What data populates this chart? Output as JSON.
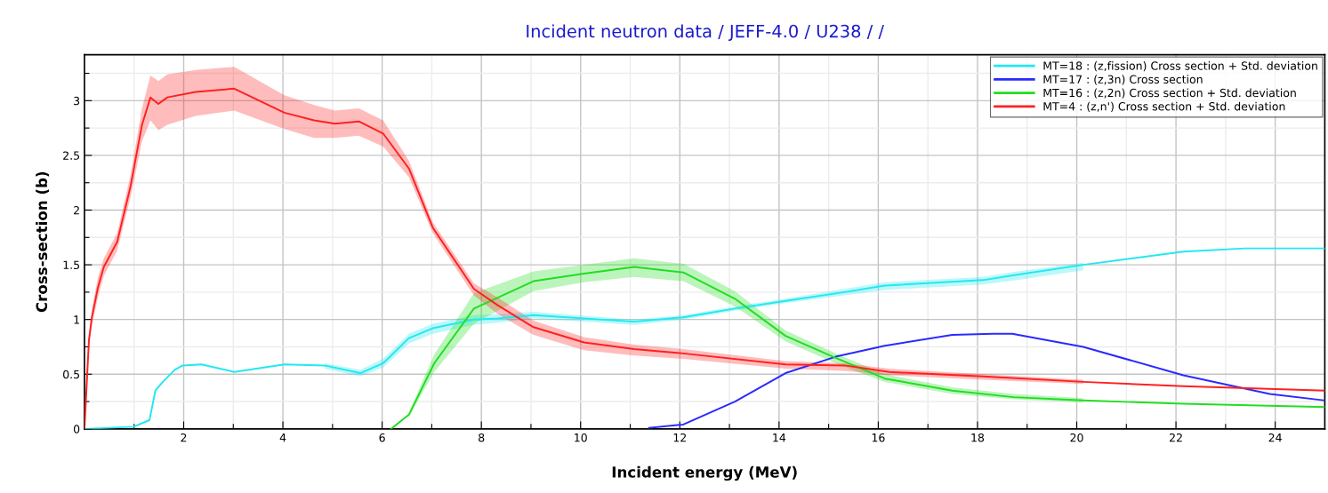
{
  "chart_data": {
    "type": "line",
    "title": "Incident neutron data / JEFF-4.0 / U238 / /",
    "xlabel": "Incident energy (MeV)",
    "ylabel": "Cross-section (b)",
    "xlim": [
      0,
      25
    ],
    "ylim": [
      0,
      3.42
    ],
    "xticks": [
      {
        "value": 1,
        "label": null
      },
      2,
      {
        "value": 3,
        "label": null
      },
      4,
      {
        "value": 5,
        "label": null
      },
      6,
      {
        "value": 7,
        "label": null
      },
      8,
      {
        "value": 9,
        "label": null
      },
      10,
      {
        "value": 11,
        "label": null
      },
      12,
      {
        "value": 13,
        "label": null
      },
      14,
      {
        "value": 15,
        "label": null
      },
      16,
      {
        "value": 17,
        "label": null
      },
      18,
      {
        "value": 19,
        "label": null
      },
      20,
      {
        "value": 21,
        "label": null
      },
      22,
      {
        "value": 23,
        "label": null
      },
      24
    ],
    "yticks": [
      0,
      {
        "value": 0.25,
        "label": null
      },
      0.5,
      {
        "value": 0.75,
        "label": null
      },
      1,
      {
        "value": 1.25,
        "label": null
      },
      1.5,
      {
        "value": 1.75,
        "label": null
      },
      2,
      {
        "value": 2.25,
        "label": null
      },
      2.5,
      {
        "value": 2.75,
        "label": null
      },
      3,
      {
        "value": 3.25,
        "label": null
      }
    ],
    "grid": true,
    "legend": "top right",
    "marker": "none",
    "line_style": "solid",
    "series": [
      {
        "name": "MT=18 : (z,fission) Cross section + Std. deviation",
        "color": "#22e8f0",
        "x": [
          0,
          0.99,
          1.31,
          1.43,
          1.58,
          1.82,
          1.98,
          2.36,
          3.02,
          4.03,
          4.84,
          5.56,
          6.02,
          6.54,
          7.02,
          7.85,
          8.33,
          9.05,
          11.08,
          12.07,
          13.11,
          14.13,
          15.32,
          16.13,
          18.11,
          18.8,
          20.13,
          22.15,
          23.39,
          25
        ],
        "values": [
          0,
          0.02,
          0.08,
          0.35,
          0.43,
          0.54,
          0.58,
          0.59,
          0.52,
          0.59,
          0.58,
          0.51,
          0.6,
          0.83,
          0.92,
          1.0,
          1.01,
          1.04,
          0.98,
          1.02,
          1.1,
          1.17,
          1.25,
          1.31,
          1.36,
          1.41,
          1.5,
          1.62,
          1.65,
          1.65
        ],
        "lower": [
          null,
          null,
          null,
          null,
          null,
          null,
          null,
          null,
          null,
          null,
          0.55,
          0.48,
          0.56,
          0.78,
          0.87,
          0.95,
          0.97,
          1.01,
          0.95,
          1.0,
          1.08,
          1.15,
          1.22,
          1.27,
          1.32,
          1.36,
          1.45,
          null,
          null,
          null
        ],
        "upper": [
          null,
          null,
          null,
          null,
          null,
          null,
          null,
          null,
          null,
          null,
          0.6,
          0.54,
          0.64,
          0.87,
          0.96,
          1.04,
          1.05,
          1.07,
          1.0,
          1.04,
          1.12,
          1.19,
          1.28,
          1.34,
          1.39,
          1.44,
          1.52,
          null,
          null,
          null
        ]
      },
      {
        "name": "MT=17 : (z,3n) Cross section",
        "color": "#2a2aff",
        "x": [
          11.38,
          12.07,
          13.11,
          14.13,
          15.14,
          16.13,
          17.49,
          18.3,
          18.7,
          20.13,
          22.15,
          23.89,
          25
        ],
        "values": [
          0.01,
          0.04,
          0.25,
          0.51,
          0.66,
          0.76,
          0.86,
          0.87,
          0.87,
          0.75,
          0.49,
          0.32,
          0.26
        ]
      },
      {
        "name": "MT=16 : (z,2n) Cross section + Std. deviation",
        "color": "#22dd22",
        "x": [
          6.18,
          6.54,
          7.05,
          7.85,
          9.05,
          10.07,
          11.08,
          12.07,
          13.11,
          14.13,
          15.14,
          16.13,
          17.49,
          18.73,
          20.13,
          22.15,
          25
        ],
        "values": [
          0,
          0.13,
          0.6,
          1.1,
          1.35,
          1.42,
          1.48,
          1.43,
          1.19,
          0.85,
          0.65,
          0.46,
          0.35,
          0.29,
          0.26,
          0.23,
          0.2
        ],
        "lower": [
          null,
          0.11,
          0.52,
          0.96,
          1.26,
          1.34,
          1.39,
          1.35,
          1.12,
          0.8,
          0.6,
          0.43,
          0.32,
          0.27,
          0.24,
          null,
          null
        ],
        "upper": [
          null,
          0.15,
          0.68,
          1.24,
          1.44,
          1.5,
          1.56,
          1.51,
          1.26,
          0.9,
          0.69,
          0.5,
          0.38,
          0.32,
          0.28,
          null,
          null
        ]
      },
      {
        "name": "MT=4 : (z,n') Cross section + Std. deviation",
        "color": "#ff2020",
        "x": [
          0,
          0.09,
          0.15,
          0.27,
          0.39,
          0.66,
          0.93,
          1.16,
          1.33,
          1.49,
          1.67,
          2.24,
          3.02,
          4.03,
          4.63,
          5.05,
          5.53,
          6.02,
          6.54,
          7.02,
          7.85,
          8.33,
          9.05,
          10.07,
          11.08,
          12.07,
          14.13,
          15.32,
          16.22,
          18.11,
          20.13,
          22.15,
          25
        ],
        "values": [
          0,
          0.81,
          1.02,
          1.29,
          1.48,
          1.71,
          2.22,
          2.78,
          3.03,
          2.97,
          3.03,
          3.08,
          3.11,
          2.89,
          2.82,
          2.79,
          2.81,
          2.7,
          2.38,
          1.84,
          1.28,
          1.13,
          0.93,
          0.79,
          0.73,
          0.69,
          0.59,
          0.58,
          0.52,
          0.48,
          0.43,
          0.39,
          0.35
        ],
        "lower": [
          0,
          0.75,
          0.95,
          1.2,
          1.4,
          1.63,
          2.12,
          2.63,
          2.82,
          2.73,
          2.78,
          2.86,
          2.91,
          2.74,
          2.66,
          2.66,
          2.68,
          2.58,
          2.3,
          1.79,
          1.22,
          1.05,
          0.86,
          0.72,
          0.67,
          0.64,
          0.55,
          0.53,
          0.49,
          0.45,
          0.41,
          null,
          null
        ],
        "upper": [
          0,
          0.87,
          1.09,
          1.38,
          1.56,
          1.79,
          2.32,
          2.93,
          3.23,
          3.18,
          3.24,
          3.28,
          3.31,
          3.05,
          2.96,
          2.91,
          2.93,
          2.82,
          2.45,
          1.89,
          1.33,
          1.2,
          0.99,
          0.84,
          0.77,
          0.73,
          0.62,
          0.6,
          0.55,
          0.5,
          0.45,
          null,
          null
        ]
      }
    ]
  }
}
